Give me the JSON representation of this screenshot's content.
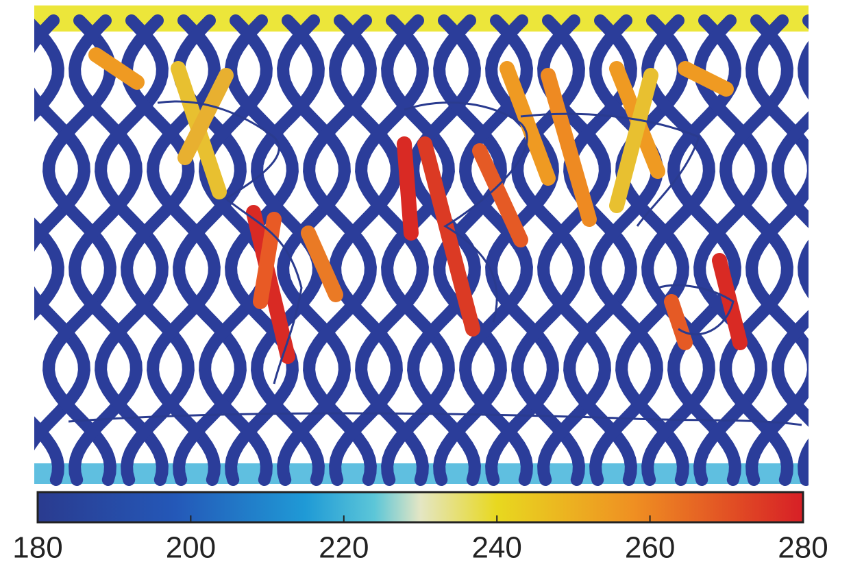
{
  "colorbar": {
    "lim": [
      180,
      280
    ],
    "ticks": [
      180,
      200,
      220,
      240,
      260,
      280
    ]
  }
}
